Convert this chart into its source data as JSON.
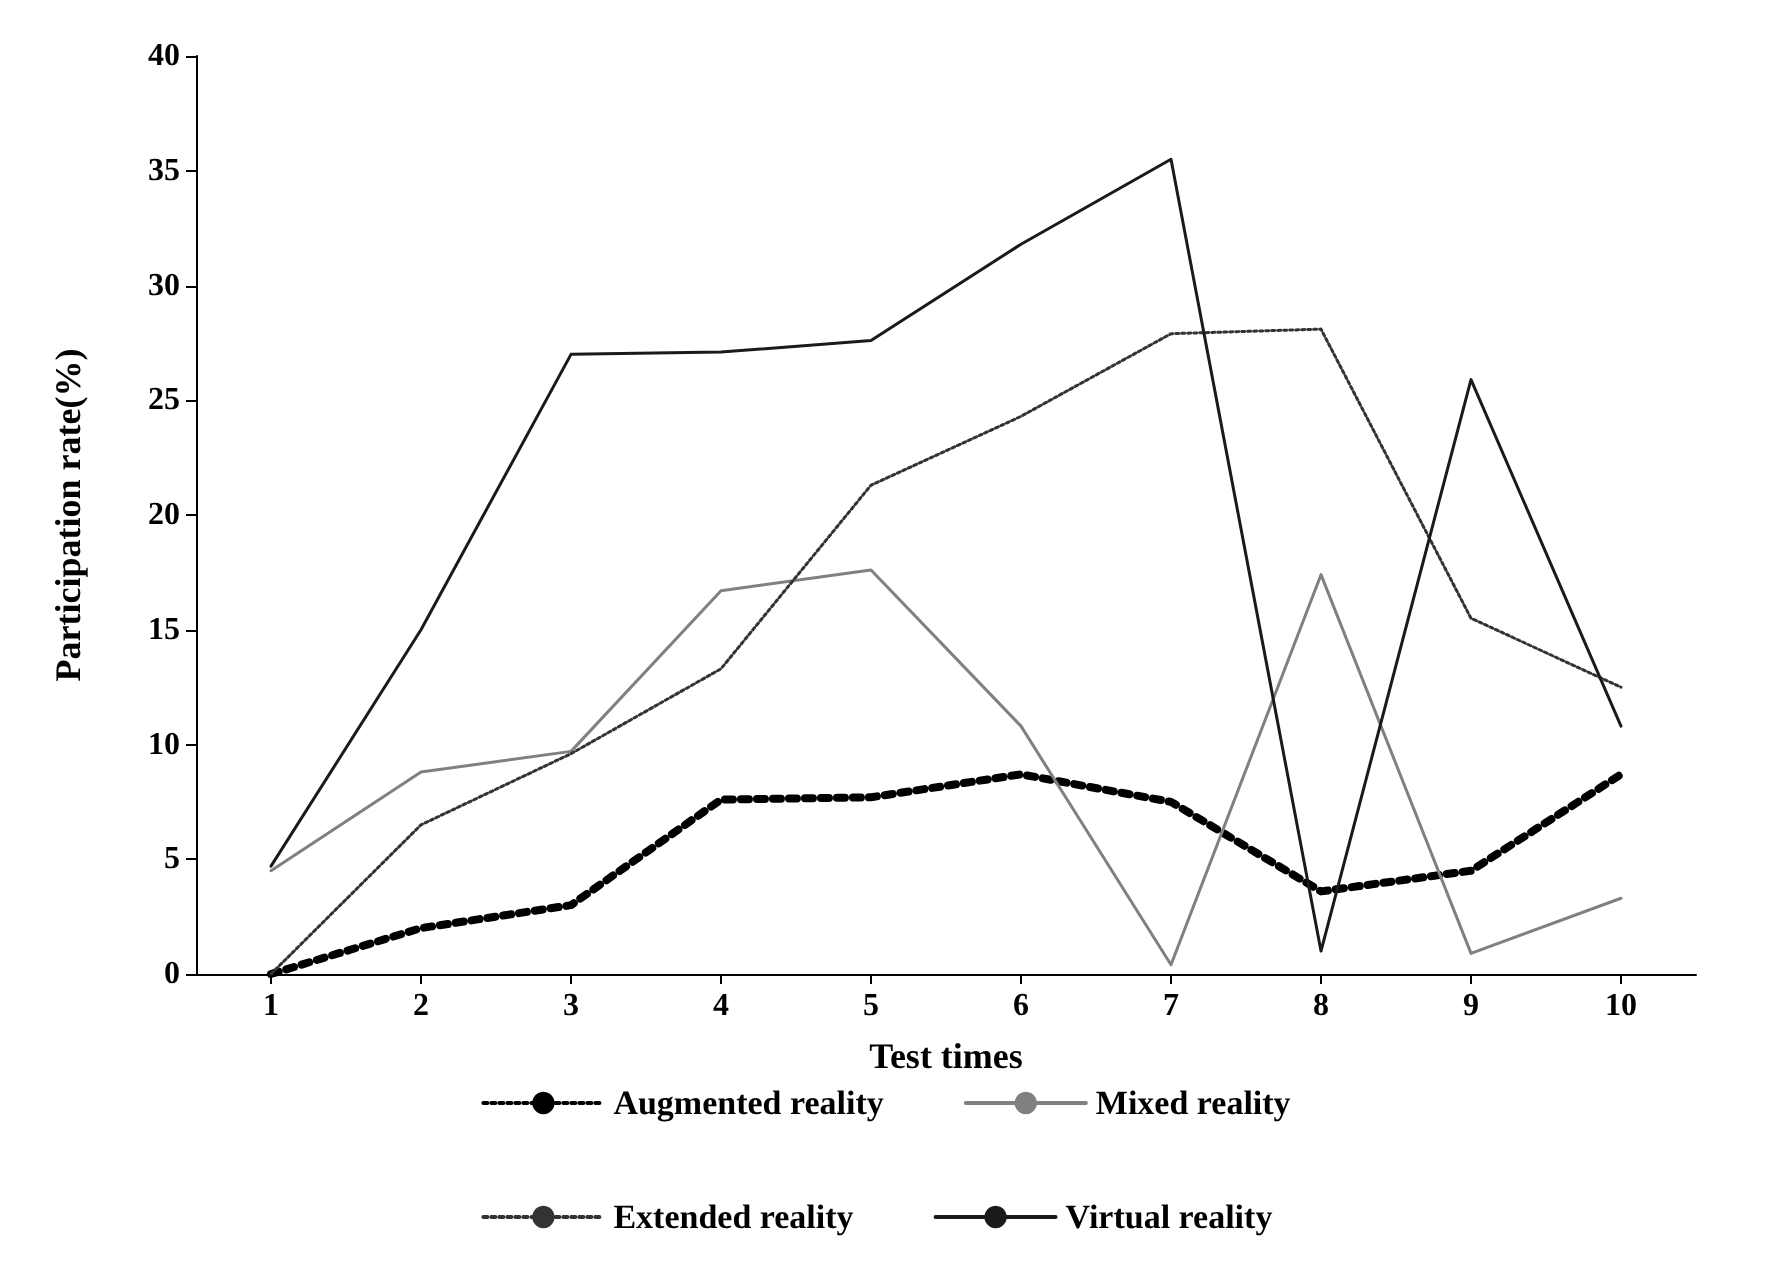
{
  "chart_data": {
    "type": "line",
    "xlabel": "Test times",
    "ylabel": "Participation rate(%)",
    "categories": [
      "1",
      "2",
      "3",
      "4",
      "5",
      "6",
      "7",
      "8",
      "9",
      "10"
    ],
    "series": [
      {
        "name": "Augmented reality",
        "color": "#000000",
        "line_style": "dotted",
        "values": [
          0,
          2,
          3,
          7.6,
          7.7,
          8.7,
          7.5,
          3.6,
          4.5,
          8.7
        ]
      },
      {
        "name": "Mixed reality",
        "color": "#808080",
        "line_style": "solid",
        "values": [
          4.5,
          8.8,
          9.7,
          16.7,
          17.6,
          10.8,
          0.4,
          17.4,
          0.9,
          3.3
        ]
      },
      {
        "name": "Extended reality",
        "color": "#333333",
        "line_style": "dotted",
        "values": [
          0,
          6.5,
          9.6,
          13.3,
          21.3,
          24.3,
          27.9,
          28.1,
          15.5,
          12.5
        ]
      },
      {
        "name": "Virtual reality",
        "color": "#1a1a1a",
        "line_style": "solid",
        "values": [
          4.7,
          15,
          27,
          27.1,
          27.6,
          31.8,
          35.5,
          1,
          25.9,
          10.8
        ]
      }
    ],
    "ylim": [
      0,
      40
    ],
    "yticks": [
      0,
      5,
      10,
      15,
      20,
      25,
      30,
      35,
      40
    ],
    "grid": false,
    "legend": "bottom",
    "marker": "none"
  }
}
